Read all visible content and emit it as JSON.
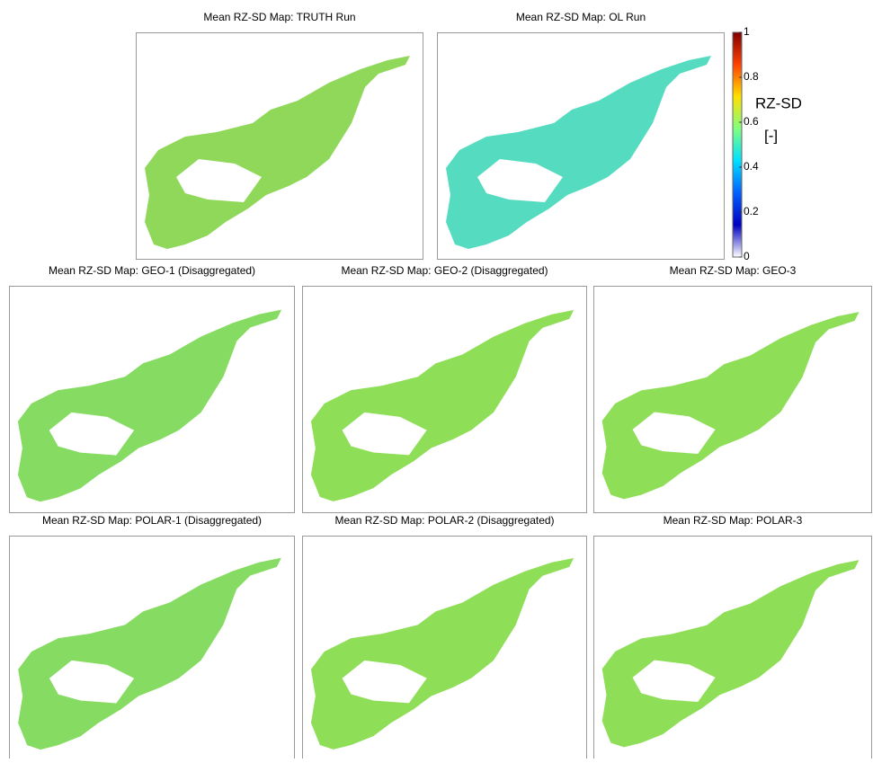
{
  "panels": [
    {
      "title": "Mean RZ-SD Map: TRUTH Run",
      "color": "#8fd85a"
    },
    {
      "title": "Mean RZ-SD Map: OL Run",
      "color": "#55dcc0"
    },
    {
      "title": "Mean RZ-SD Map: GEO-1 (Disaggregated)",
      "color": "#86dc62"
    },
    {
      "title": "Mean RZ-SD Map: GEO-2 (Disaggregated)",
      "color": "#8ede58"
    },
    {
      "title": "Mean RZ-SD Map: GEO-3",
      "color": "#8ede58"
    },
    {
      "title": "Mean RZ-SD Map: POLAR-1 (Disaggregated)",
      "color": "#86dc62"
    },
    {
      "title": "Mean RZ-SD Map: POLAR-2 (Disaggregated)",
      "color": "#8ede58"
    },
    {
      "title": "Mean RZ-SD Map: POLAR-3",
      "color": "#8ede58"
    }
  ],
  "colorbar": {
    "label": "RZ-SD",
    "unit": "[-]",
    "lim": [
      0,
      1
    ],
    "ticks": [
      0,
      0.2,
      0.4,
      0.6,
      0.8,
      1
    ],
    "colors": [
      "#ffffff",
      "#0000c0",
      "#0060ff",
      "#00e0ff",
      "#80ff80",
      "#ffe000",
      "#ff4000",
      "#800000"
    ]
  }
}
